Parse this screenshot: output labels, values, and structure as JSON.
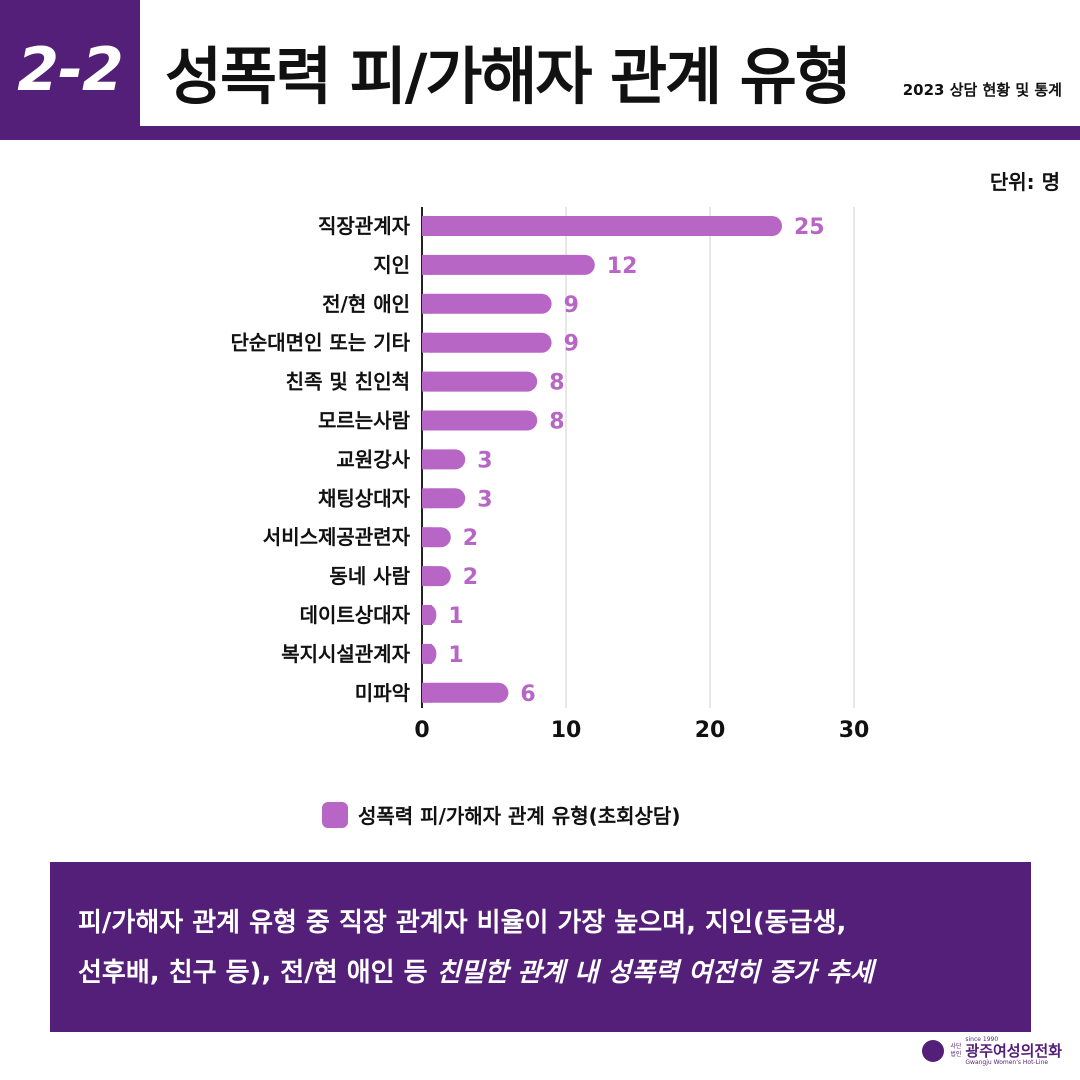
{
  "header": {
    "section_number": "2-2",
    "title": "성폭력 피/가해자 관계 유형",
    "subtitle": "2023 상담 현황 및 통계"
  },
  "unit_label": "단위: 명",
  "colors": {
    "brand_purple": "#531f78",
    "bar": "#b866c6"
  },
  "chart_data": {
    "type": "bar",
    "orientation": "horizontal",
    "categories": [
      "직장관계자",
      "지인",
      "전/현 애인",
      "단순대면인 또는 기타",
      "친족 및 친인척",
      "모르는사람",
      "교원강사",
      "채팅상대자",
      "서비스제공관련자",
      "동네 사람",
      "데이트상대자",
      "복지시설관계자",
      "미파악"
    ],
    "series": [
      {
        "name": "성폭력 피/가해자 관계 유형(초회상담)",
        "values": [
          25,
          12,
          9,
          9,
          8,
          8,
          3,
          3,
          2,
          2,
          1,
          1,
          6
        ]
      }
    ],
    "xlim": [
      0,
      30
    ],
    "xticks": [
      0,
      10,
      20,
      30
    ],
    "grid": true,
    "legend_position": "bottom",
    "data_labels": true
  },
  "note": {
    "line1": "피/가해자 관계 유형 중 직장 관계자 비율이 가장 높으며, 지인(동급생,",
    "line2_plain": "선후배, 친구 등), 전/현 애인 등 ",
    "line2_emphasis": "친밀한 관계 내 성폭력 여전히 증가 추세"
  },
  "logo": {
    "since": "since 1990",
    "corp1": "사단",
    "corp2": "법인",
    "name": "광주여성의전화",
    "english": "Gwangju Women's Hot-Line"
  }
}
